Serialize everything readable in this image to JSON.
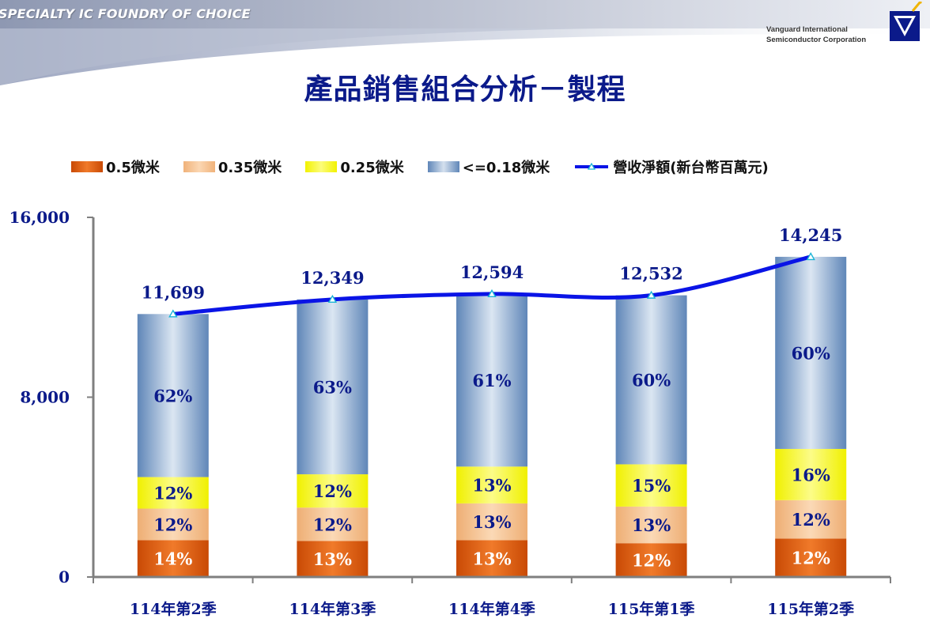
{
  "header": {
    "tagline": "SPECIALTY IC FOUNDRY OF CHOICE",
    "company_line1": "Vanguard International",
    "company_line2": "Semiconductor Corporation",
    "logo_icon": "vis-logo-icon"
  },
  "title": "產品銷售組合分析－製程",
  "colors": {
    "navy": "#0b1a8a",
    "line": "#0a14e6",
    "seg_05": "#e55e0c",
    "seg_035": "#f5c192",
    "seg_025": "#f7f71e",
    "seg_018": "#7a9fc9"
  },
  "chart_data": {
    "type": "bar",
    "stacked": true,
    "categories": [
      "114年第2季",
      "114年第3季",
      "114年第4季",
      "115年第1季",
      "115年第2季"
    ],
    "series": [
      {
        "name": "0.5微米",
        "values": [
          14,
          13,
          13,
          12,
          12
        ],
        "labels": [
          "14%",
          "13%",
          "13%",
          "12%",
          "12%"
        ]
      },
      {
        "name": "0.35微米",
        "values": [
          12,
          12,
          13,
          13,
          12
        ],
        "labels": [
          "12%",
          "12%",
          "13%",
          "13%",
          "12%"
        ]
      },
      {
        "name": "0.25微米",
        "values": [
          12,
          12,
          13,
          15,
          16
        ],
        "labels": [
          "12%",
          "12%",
          "13%",
          "15%",
          "16%"
        ]
      },
      {
        "name": "<=0.18微米",
        "values": [
          62,
          63,
          61,
          60,
          60
        ],
        "labels": [
          "62%",
          "63%",
          "61%",
          "60%",
          "60%"
        ]
      }
    ],
    "line_series": {
      "name": "營收淨額(新台幣百萬元)",
      "values": [
        11699,
        12349,
        12594,
        12532,
        14245
      ],
      "labels": [
        "11,699",
        "12,349",
        "12,594",
        "12,532",
        "14,245"
      ]
    },
    "ylim": [
      0,
      16000
    ],
    "yticks": [
      0,
      8000,
      16000
    ],
    "ytick_labels": [
      "0",
      "8,000",
      "16,000"
    ],
    "legend_position": "top",
    "grid": false
  }
}
